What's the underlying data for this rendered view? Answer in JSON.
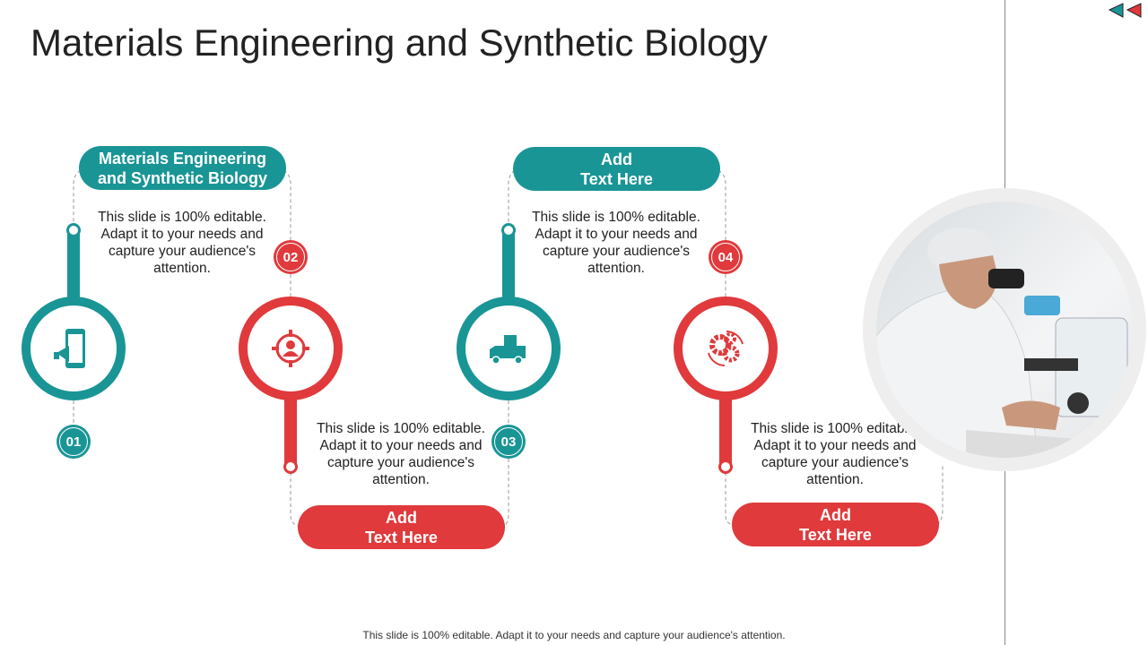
{
  "title": "Materials Engineering and Synthetic Biology",
  "nav": {
    "prev": "previous-slide",
    "next": "next-slide"
  },
  "steps": [
    {
      "number": "01",
      "heading": "Materials Engineering\nand Synthetic Biology",
      "text": "This slide is 100% editable. Adapt it to your needs and capture your audience's attention.",
      "icon": "mobile-megaphone-icon",
      "color": "#1a9596"
    },
    {
      "number": "02",
      "heading": "Add\nText Here",
      "text": "This slide is 100% editable. Adapt it to your needs and capture your audience's attention.",
      "icon": "target-user-icon",
      "color": "#e03a3c"
    },
    {
      "number": "03",
      "heading": "Add\nText Here",
      "text": "This slide is 100% editable. Adapt it to your needs and capture your audience's attention.",
      "icon": "delivery-truck-icon",
      "color": "#1a9596"
    },
    {
      "number": "04",
      "heading": "Add\nText Here",
      "text": "This slide is 100% editable. Adapt it to your needs and capture your audience's attention.",
      "icon": "gears-cycle-icon",
      "color": "#e03a3c"
    }
  ],
  "footer": "This slide is 100% editable. Adapt it to your needs and capture your audience's attention."
}
